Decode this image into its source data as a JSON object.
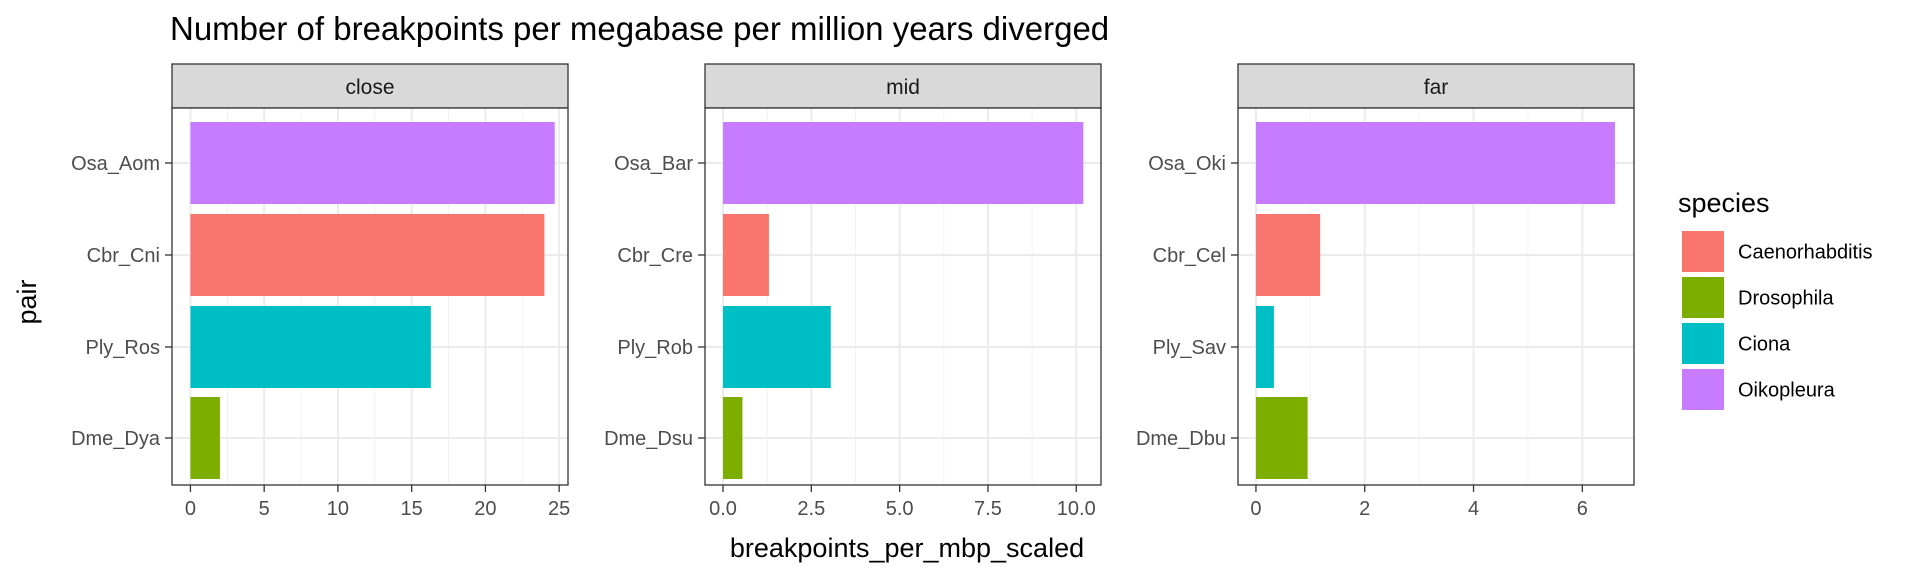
{
  "chart_data": {
    "type": "bar",
    "orientation": "horizontal",
    "title": "Number of breakpoints per megabase per million years diverged",
    "xlabel": "breakpoints_per_mbp_scaled",
    "ylabel": "pair",
    "grid": true,
    "legend": {
      "title": "species",
      "position": "right",
      "entries": [
        {
          "name": "Caenorhabditis",
          "color": "#F8766D"
        },
        {
          "name": "Drosophila",
          "color": "#7CAE00"
        },
        {
          "name": "Ciona",
          "color": "#00BFC4"
        },
        {
          "name": "Oikopleura",
          "color": "#C77CFF"
        }
      ]
    },
    "panels": [
      {
        "facet": "close",
        "xlim": [
          -1.25,
          25.6
        ],
        "xticks": [
          0,
          5,
          10,
          15,
          20,
          25
        ],
        "xtick_labels": [
          "0",
          "5",
          "10",
          "15",
          "20",
          "25"
        ],
        "bars": [
          {
            "pair": "Osa_Aom",
            "species": "Oikopleura",
            "value": 24.7
          },
          {
            "pair": "Cbr_Cni",
            "species": "Caenorhabditis",
            "value": 24.0
          },
          {
            "pair": "Ply_Ros",
            "species": "Ciona",
            "value": 16.3
          },
          {
            "pair": "Dme_Dya",
            "species": "Drosophila",
            "value": 2.0
          }
        ]
      },
      {
        "facet": "mid",
        "xlim": [
          -0.51,
          10.7
        ],
        "xticks": [
          0,
          2.5,
          5,
          7.5,
          10
        ],
        "xtick_labels": [
          "0.0",
          "2.5",
          "5.0",
          "7.5",
          "10.0"
        ],
        "bars": [
          {
            "pair": "Osa_Bar",
            "species": "Oikopleura",
            "value": 10.2
          },
          {
            "pair": "Cbr_Cre",
            "species": "Caenorhabditis",
            "value": 1.3
          },
          {
            "pair": "Ply_Rob",
            "species": "Ciona",
            "value": 3.05
          },
          {
            "pair": "Dme_Dsu",
            "species": "Drosophila",
            "value": 0.55
          }
        ]
      },
      {
        "facet": "far",
        "xlim": [
          -0.33,
          6.95
        ],
        "xticks": [
          0,
          2,
          4,
          6
        ],
        "xtick_labels": [
          "0",
          "2",
          "4",
          "6"
        ],
        "bars": [
          {
            "pair": "Osa_Oki",
            "species": "Oikopleura",
            "value": 6.6
          },
          {
            "pair": "Cbr_Cel",
            "species": "Caenorhabditis",
            "value": 1.18
          },
          {
            "pair": "Ply_Sav",
            "species": "Ciona",
            "value": 0.33
          },
          {
            "pair": "Dme_Dbu",
            "species": "Drosophila",
            "value": 0.95
          }
        ]
      }
    ]
  }
}
